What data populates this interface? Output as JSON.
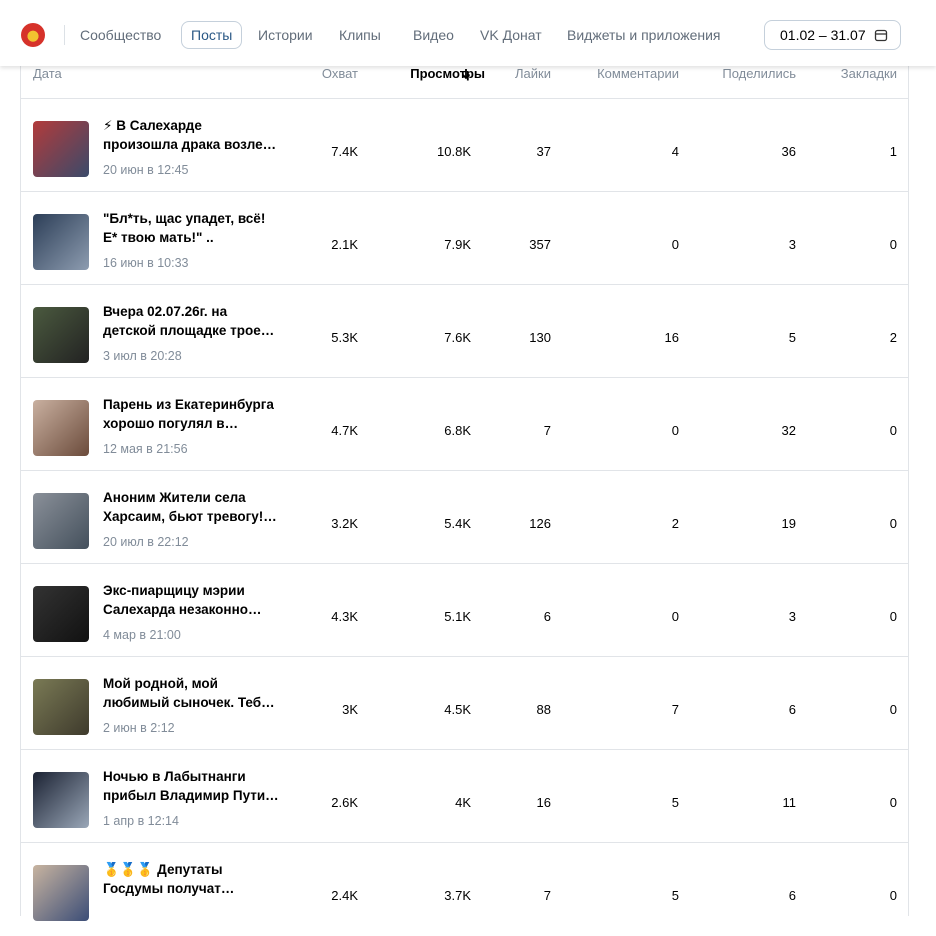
{
  "nav": {
    "tabs": [
      "Сообщество",
      "Посты",
      "Истории",
      "Клипы",
      "Видео",
      "VK Донат",
      "Виджеты и приложения"
    ],
    "active": 1,
    "date_range": "01.02 – 31.07"
  },
  "table": {
    "headers": [
      "Дата",
      "Охват",
      "Просмотры",
      "Лайки",
      "Комментарии",
      "Поделились",
      "Закладки"
    ],
    "rows": [
      {
        "title": [
          "⚡ В Салехарде",
          "произошла драка возле…"
        ],
        "date": "20 июн в 12:45",
        "cells": [
          "7.4K",
          "10.8K",
          "37",
          "4",
          "36",
          "1"
        ]
      },
      {
        "title": [
          "\"Бл*ть, щас упадет, всё!",
          "Е* твою мать!\"  .."
        ],
        "date": "16 июн в 10:33",
        "cells": [
          "2.1K",
          "7.9K",
          "357",
          "0",
          "3",
          "0"
        ]
      },
      {
        "title": [
          "Вчера 02.07.26г. на",
          "детской площадке трое…"
        ],
        "date": "3 июл в 20:28",
        "cells": [
          "5.3K",
          "7.6K",
          "130",
          "16",
          "5",
          "2"
        ]
      },
      {
        "title": [
          "Парень из Екатеринбурга",
          "хорошо погулял в…"
        ],
        "date": "12 мая в 21:56",
        "cells": [
          "4.7K",
          "6.8K",
          "7",
          "0",
          "32",
          "0"
        ]
      },
      {
        "title": [
          "Аноним  Жители села",
          "Харсаим, бьют тревогу!…"
        ],
        "date": "20 июл в 22:12",
        "cells": [
          "3.2K",
          "5.4K",
          "126",
          "2",
          "19",
          "0"
        ]
      },
      {
        "title": [
          "Экс-пиарщицу мэрии",
          "Салехарда незаконно…"
        ],
        "date": "4 мар в 21:00",
        "cells": [
          "4.3K",
          "5.1K",
          "6",
          "0",
          "3",
          "0"
        ]
      },
      {
        "title": [
          "Мой родной, мой",
          "любимый сыночек. Теб…"
        ],
        "date": "2 июн в 2:12",
        "cells": [
          "3K",
          "4.5K",
          "88",
          "7",
          "6",
          "0"
        ]
      },
      {
        "title": [
          "Ночью в Лабытнанги",
          "прибыл Владимир Пути…"
        ],
        "date": "1 апр в 12:14",
        "cells": [
          "2.6K",
          "4K",
          "16",
          "5",
          "11",
          "0"
        ]
      },
      {
        "title": [
          "🥇🥇🥇 Депутаты",
          "Госдумы получат…"
        ],
        "date": "",
        "cells": [
          "2.4K",
          "3.7K",
          "7",
          "5",
          "6",
          "0"
        ]
      }
    ]
  }
}
